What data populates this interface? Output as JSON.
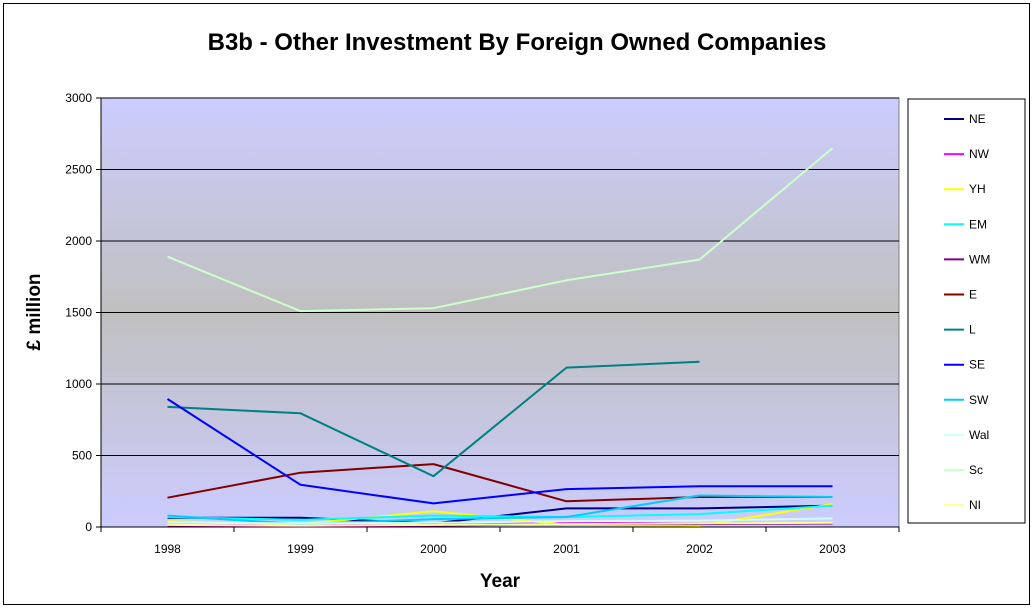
{
  "chart_data": {
    "type": "line",
    "title": "B3b - Other Investment By Foreign Owned Companies",
    "xlabel": "Year",
    "ylabel": "£ million",
    "categories": [
      "1998",
      "1999",
      "2000",
      "2001",
      "2002",
      "2003"
    ],
    "ylim": [
      0,
      3000
    ],
    "yticks": [
      0,
      500,
      1000,
      1500,
      2000,
      2500,
      3000
    ],
    "grid": "horizontal major gridlines",
    "legend_position": "right",
    "plot_background": "vertical gradient lavender to grey to lavender",
    "series": [
      {
        "name": "NE",
        "color": "#000080",
        "values": [
          65,
          65,
          25,
          130,
          130,
          150
        ]
      },
      {
        "name": "NW",
        "color": "#FF00FF",
        "values": [
          20,
          15,
          15,
          30,
          25,
          25
        ]
      },
      {
        "name": "YH",
        "color": "#FFFF00",
        "values": [
          40,
          20,
          110,
          15,
          10,
          160
        ]
      },
      {
        "name": "EM",
        "color": "#00FFFF",
        "values": [
          70,
          50,
          80,
          70,
          90,
          150
        ]
      },
      {
        "name": "WM",
        "color": "#800080",
        "values": [
          10,
          5,
          10,
          20,
          20,
          25
        ]
      },
      {
        "name": "E",
        "color": "#800000",
        "values": [
          205,
          380,
          440,
          180,
          210,
          210
        ]
      },
      {
        "name": "L",
        "color": "#008080",
        "values": [
          840,
          795,
          355,
          1115,
          1155,
          null
        ]
      },
      {
        "name": "SE",
        "color": "#0000FF",
        "values": [
          895,
          295,
          165,
          265,
          285,
          285
        ]
      },
      {
        "name": "SW",
        "color": "#00CCFF",
        "values": [
          80,
          20,
          55,
          70,
          220,
          210
        ]
      },
      {
        "name": "Wal",
        "color": "#CCFFFF",
        "values": [
          30,
          25,
          30,
          40,
          45,
          60
        ]
      },
      {
        "name": "Sc",
        "color": "#CCFFCC",
        "values": [
          1890,
          1510,
          1530,
          1725,
          1870,
          2650
        ]
      },
      {
        "name": "NI",
        "color": "#FFFF99",
        "values": [
          15,
          10,
          15,
          20,
          25,
          30
        ]
      }
    ]
  }
}
